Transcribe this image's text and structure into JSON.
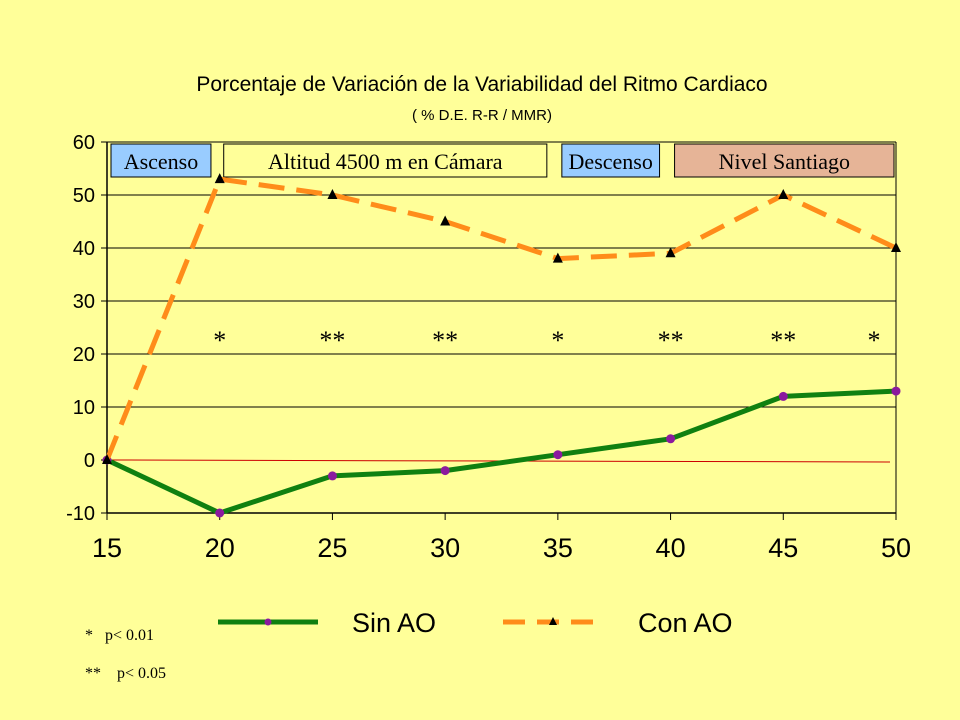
{
  "chart_data": {
    "type": "line",
    "title": "Porcentaje de Variación de la Variabilidad del Ritmo Cardiaco",
    "subtitle": "( % D.E. R-R / MMR)",
    "x": [
      15,
      20,
      25,
      30,
      35,
      40,
      45,
      50
    ],
    "xlim": [
      15,
      50
    ],
    "ylim": [
      -10,
      60
    ],
    "yticks": [
      -10,
      0,
      10,
      20,
      30,
      40,
      50,
      60
    ],
    "grid": true,
    "legend_position": "bottom",
    "series": [
      {
        "name": "Sin AO",
        "values": [
          0,
          -10,
          -3,
          -2,
          1,
          4,
          12,
          13
        ],
        "color": "#108010",
        "marker": "circle",
        "marker_color": "#8b1a9e",
        "style": "solid"
      },
      {
        "name": "Con AO",
        "values": [
          0,
          53,
          50,
          45,
          38,
          39,
          50,
          40
        ],
        "color": "#ff8c1a",
        "marker": "triangle",
        "marker_color": "#000000",
        "style": "dashed"
      }
    ],
    "phases": [
      {
        "label": "Ascenso",
        "fill": "#99ccff",
        "x0": 15,
        "x1": 19.7
      },
      {
        "label": "Altitud 4500 m en Cámara",
        "fill": "#ffff99",
        "x0": 20,
        "x1": 34.6
      },
      {
        "label": "Descenso",
        "fill": "#99ccff",
        "x0": 35,
        "x1": 39.6
      },
      {
        "label": "Nivel Santiago",
        "fill": "#e6b497",
        "x0": 40,
        "x1": 50
      }
    ],
    "significance": [
      {
        "x": 20,
        "label": "*"
      },
      {
        "x": 25,
        "label": "**"
      },
      {
        "x": 30,
        "label": "**"
      },
      {
        "x": 35,
        "label": "*"
      },
      {
        "x": 40,
        "label": "**"
      },
      {
        "x": 45,
        "label": "**"
      },
      {
        "x": 50,
        "label": "*"
      }
    ],
    "significance_y": 24,
    "notes": [
      "*   p< 0.01",
      "**    p< 0.05"
    ]
  }
}
